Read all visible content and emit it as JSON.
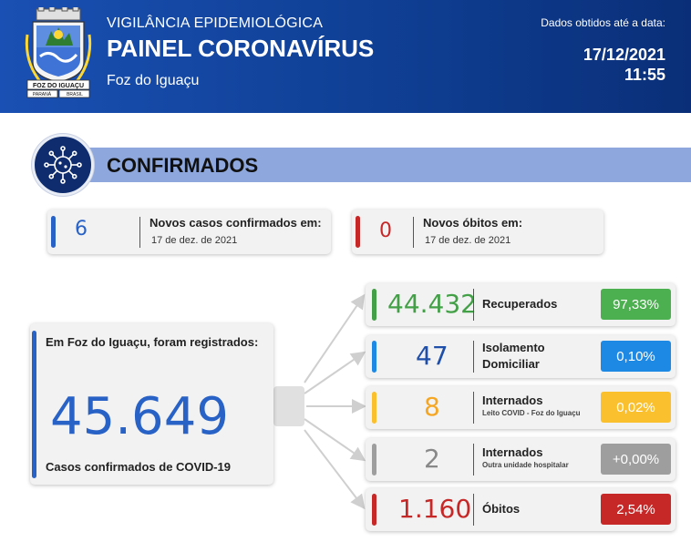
{
  "header": {
    "subtitle": "VIGILÂNCIA EPIDEMIOLÓGICA",
    "title": "PAINEL CORONAVÍRUS",
    "city": "Foz do Iguaçu",
    "date_note": "Dados obtidos até a data:",
    "date": "17/12/2021",
    "time": "11:55",
    "crest": {
      "banner_text": "FOZ DO IGUAÇU",
      "left_text": "PARANÁ",
      "right_text": "BRASIL"
    }
  },
  "section": {
    "title": "CONFIRMADOS",
    "icon": "virus-icon"
  },
  "new_cases": {
    "value": "6",
    "label": "Novos casos confirmados em:",
    "date": "17 de dez. de 2021",
    "color": "#2962c6"
  },
  "new_deaths": {
    "value": "0",
    "label": "Novos óbitos em:",
    "date": "17 de dez. de 2021",
    "color": "#c62828"
  },
  "total": {
    "heading": "Em Foz do Iguaçu, foram registrados:",
    "value": "45.649",
    "caption": "Casos confirmados de COVID-19",
    "color": "#2962c6"
  },
  "outcomes": [
    {
      "value": "44.432",
      "label": "Recuperados",
      "label2": "",
      "note": "",
      "percent": "97,33%",
      "color": "#43a047",
      "num_color": "#43a047"
    },
    {
      "value": "47",
      "label": "Isolamento",
      "label2": "Domiciliar",
      "note": "",
      "percent": "0,10%",
      "color": "#1e88e5",
      "num_color": "#1f4fa8"
    },
    {
      "value": "8",
      "label": "Internados",
      "label2": "",
      "note": "Leito COVID - Foz do Iguaçu",
      "percent": "0,02%",
      "color": "#fbc02d",
      "num_color": "#f5a623"
    },
    {
      "value": "2",
      "label": "Internados",
      "label2": "",
      "note": "Outra unidade hospitalar",
      "percent": "+0,00%",
      "color": "#9e9e9e",
      "num_color": "#888888"
    },
    {
      "value": "1.160",
      "label": "Óbitos",
      "label2": "",
      "note": "",
      "percent": "2,54%",
      "color": "#c62828",
      "num_color": "#c62828"
    }
  ]
}
